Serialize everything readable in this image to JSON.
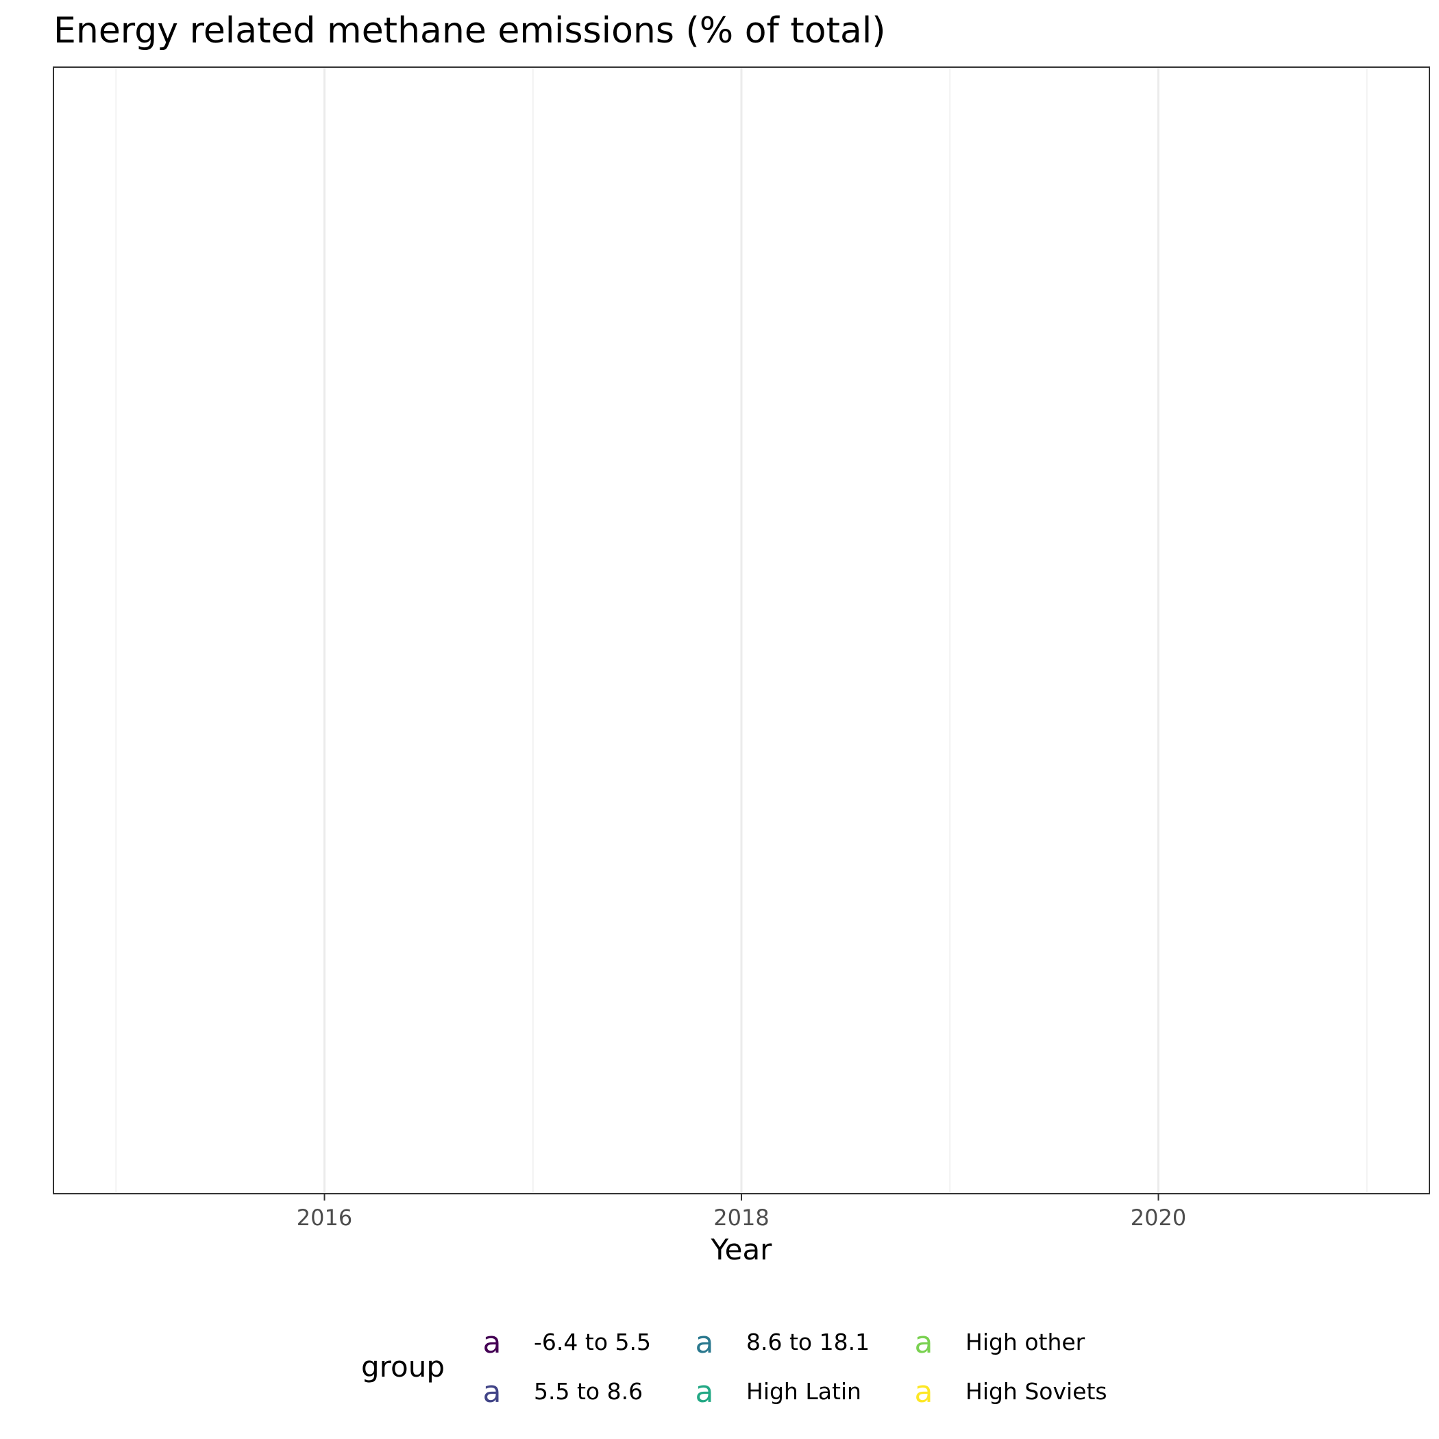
{
  "chart_data": {
    "type": "line",
    "title": "Energy related methane emissions (% of total)",
    "xlabel": "Year",
    "ylabel": "",
    "xlim": [
      2014.7,
      2021.3
    ],
    "x_ticks": [
      2016,
      2018,
      2020
    ],
    "x_tick_labels": [
      "2016",
      "2018",
      "2020"
    ],
    "x_minor_grid": [
      2015,
      2017,
      2019,
      2021
    ],
    "grid": true,
    "legend": {
      "title": "group",
      "placement": "bottom",
      "key_glyph": "a",
      "entries": [
        {
          "label": "-6.4 to 5.5",
          "color": "#440154"
        },
        {
          "label": "5.5 to 8.6",
          "color": "#414487"
        },
        {
          "label": "8.6 to 18.1",
          "color": "#2A788E"
        },
        {
          "label": "High Latin",
          "color": "#22A884"
        },
        {
          "label": "High other",
          "color": "#7AD151"
        },
        {
          "label": "High Soviets",
          "color": "#FDE725"
        }
      ]
    },
    "series": []
  },
  "colors": {
    "panel_border": "#333333",
    "grid_major": "#ebebeb",
    "grid_minor": "#f2f2f2"
  }
}
